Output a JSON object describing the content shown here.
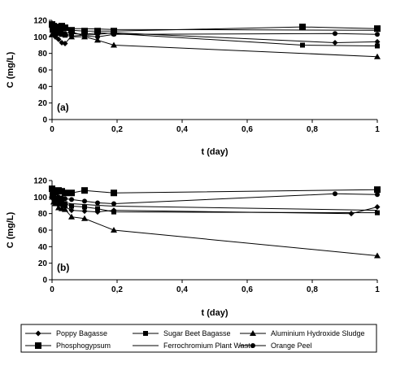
{
  "colors": {
    "ink": "#000000",
    "background": "#ffffff"
  },
  "legend": {
    "placement": "bottom",
    "entries": [
      {
        "label": "Poppy Bagasse",
        "marker": "diamond"
      },
      {
        "label": "Sugar Beet Bagasse",
        "marker": "small-square"
      },
      {
        "label": "Aluminium Hydroxide Sludge",
        "marker": "triangle"
      },
      {
        "label": "Phosphogypsum",
        "marker": "large-square"
      },
      {
        "label": "Ferrochromium Plant Waste",
        "marker": "none"
      },
      {
        "label": "Orange Peel",
        "marker": "circle"
      }
    ]
  },
  "chart_data": [
    {
      "type": "line",
      "panel_label": "(a)",
      "xlabel": "t (day)",
      "ylabel": "C (mg/L)",
      "xlim": [
        0,
        1
      ],
      "ylim": [
        0,
        120
      ],
      "xticks": [
        "0",
        "0,2",
        "0,4",
        "0,6",
        "0,8",
        "1"
      ],
      "yticks": [
        "0",
        "20",
        "40",
        "60",
        "80",
        "100",
        "120"
      ],
      "grid": false,
      "series": [
        {
          "name": "Poppy Bagasse",
          "marker": "diamond",
          "x": [
            0,
            0.005,
            0.01,
            0.02,
            0.03,
            0.04,
            0.06,
            0.1,
            0.14,
            0.19,
            0.87,
            1
          ],
          "y": [
            110,
            105,
            100,
            97,
            93,
            92,
            101,
            102,
            103,
            105,
            93,
            94
          ]
        },
        {
          "name": "Sugar Beet Bagasse",
          "marker": "small-square",
          "x": [
            0,
            0.005,
            0.01,
            0.02,
            0.03,
            0.04,
            0.06,
            0.1,
            0.14,
            0.19,
            0.77,
            1
          ],
          "y": [
            108,
            104,
            103,
            104,
            103,
            102,
            104,
            103,
            105,
            104,
            90,
            89
          ]
        },
        {
          "name": "Aluminium Hydroxide Sludge",
          "marker": "triangle",
          "x": [
            0,
            0.005,
            0.01,
            0.02,
            0.04,
            0.06,
            0.1,
            0.14,
            0.19,
            1
          ],
          "y": [
            103,
            106,
            107,
            105,
            103,
            100,
            100,
            96,
            90,
            76
          ]
        },
        {
          "name": "Phosphogypsum",
          "marker": "large-square",
          "x": [
            0,
            0.005,
            0.01,
            0.02,
            0.03,
            0.04,
            0.06,
            0.1,
            0.14,
            0.19,
            0.77,
            1
          ],
          "y": [
            115,
            113,
            112,
            110,
            113,
            111,
            108,
            107,
            107,
            107,
            112,
            110
          ]
        },
        {
          "name": "Ferrochromium Plant Waste",
          "marker": "none",
          "x": [
            0,
            0.005,
            0.01,
            0.02,
            0.04,
            0.06,
            0.1,
            0.19,
            1
          ],
          "y": [
            118,
            116,
            115,
            113,
            111,
            110,
            110,
            109,
            108
          ]
        },
        {
          "name": "Orange Peel",
          "marker": "circle",
          "x": [
            0,
            0.005,
            0.01,
            0.02,
            0.03,
            0.04,
            0.06,
            0.1,
            0.14,
            0.19,
            0.87,
            1
          ],
          "y": [
            108,
            106,
            105,
            106,
            105,
            104,
            106,
            101,
            100,
            103,
            104,
            103
          ]
        }
      ]
    },
    {
      "type": "line",
      "panel_label": "(b)",
      "xlabel": "t (day)",
      "ylabel": "C (mg/L)",
      "xlim": [
        0,
        1
      ],
      "ylim": [
        0,
        120
      ],
      "xticks": [
        "0",
        "0,2",
        "0,4",
        "0,6",
        "0,8",
        "1"
      ],
      "yticks": [
        "0",
        "20",
        "40",
        "60",
        "80",
        "100",
        "120"
      ],
      "grid": false,
      "series": [
        {
          "name": "Poppy Bagasse",
          "marker": "diamond",
          "x": [
            0,
            0.005,
            0.01,
            0.02,
            0.03,
            0.04,
            0.06,
            0.1,
            0.14,
            0.19,
            0.92,
            1
          ],
          "y": [
            100,
            97,
            95,
            91,
            90,
            88,
            84,
            83,
            82,
            84,
            80,
            88
          ]
        },
        {
          "name": "Sugar Beet Bagasse",
          "marker": "small-square",
          "x": [
            0,
            0.005,
            0.01,
            0.02,
            0.03,
            0.04,
            0.06,
            0.1,
            0.14,
            0.19,
            1
          ],
          "y": [
            103,
            100,
            99,
            96,
            94,
            92,
            89,
            88,
            86,
            82,
            81
          ]
        },
        {
          "name": "Aluminium Hydroxide Sludge",
          "marker": "triangle",
          "x": [
            0,
            0.005,
            0.01,
            0.02,
            0.03,
            0.04,
            0.06,
            0.1,
            0.19,
            1
          ],
          "y": [
            100,
            94,
            92,
            87,
            86,
            85,
            76,
            74,
            60,
            29
          ]
        },
        {
          "name": "Phosphogypsum",
          "marker": "large-square",
          "x": [
            0,
            0.005,
            0.01,
            0.02,
            0.03,
            0.04,
            0.06,
            0.1,
            0.19,
            1
          ],
          "y": [
            110,
            107,
            106,
            108,
            107,
            105,
            105,
            108,
            105,
            109
          ]
        },
        {
          "name": "Ferrochromium Plant Waste",
          "marker": "none",
          "x": [
            0,
            0.01,
            0.02,
            0.04,
            0.06,
            0.1,
            0.14,
            0.19,
            1
          ],
          "y": [
            98,
            95,
            94,
            93,
            92,
            91,
            90,
            89,
            84
          ]
        },
        {
          "name": "Orange Peel",
          "marker": "circle",
          "x": [
            0,
            0.005,
            0.01,
            0.02,
            0.03,
            0.04,
            0.06,
            0.1,
            0.14,
            0.19,
            0.87,
            1
          ],
          "y": [
            101,
            99,
            98,
            100,
            99,
            98,
            97,
            95,
            93,
            92,
            104,
            103
          ]
        }
      ]
    }
  ]
}
